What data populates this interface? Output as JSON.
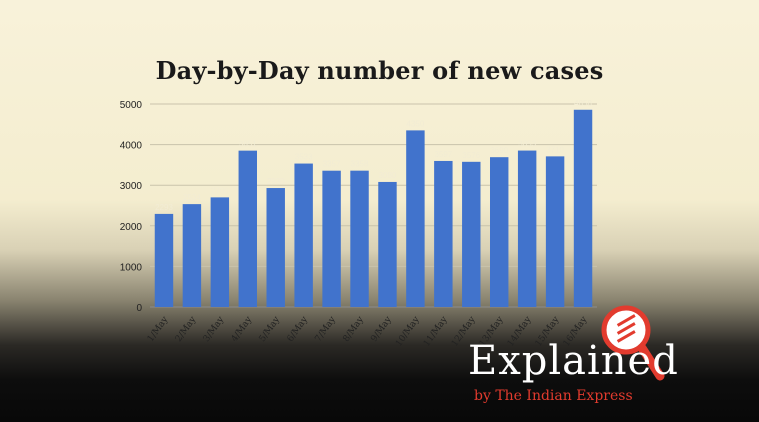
{
  "chart_data": {
    "type": "bar",
    "title": "Day-by-Day number of new cases",
    "xlabel": "",
    "ylabel": "",
    "categories": [
      "1/May",
      "2/May",
      "3/May",
      "4/May",
      "5/May",
      "6/May",
      "7/May",
      "8/May",
      "9/May",
      "10/May",
      "11/May",
      "12/May",
      "13/May",
      "14/May",
      "15/May",
      "16/May"
    ],
    "values": [
      2293,
      2534,
      2700,
      3851,
      2930,
      3533,
      3357,
      3358,
      3080,
      4350,
      3597,
      3576,
      3690,
      3853,
      3710,
      4858
    ],
    "ylim": [
      0,
      5000
    ],
    "yticks": [
      0,
      1000,
      2000,
      3000,
      4000,
      5000
    ],
    "grid": true,
    "bar_color": "#4173cc"
  },
  "branding": {
    "word": "Explained",
    "subtitle": "by The Indian Express",
    "accent_color": "#e23b2e",
    "icon": "magnifier-logo-icon"
  }
}
